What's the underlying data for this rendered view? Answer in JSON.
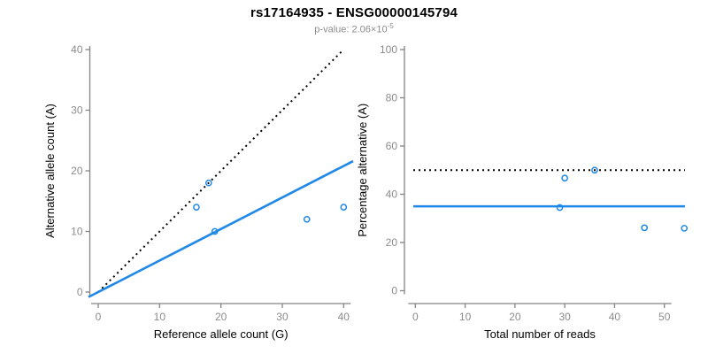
{
  "header": {
    "title": "rs17164935 - ENSG00000145794",
    "subtitle_prefix": "p-value: 2.06×10",
    "subtitle_exponent": "-5"
  },
  "colors": {
    "accent_blue": "#1f88e8",
    "line_black": "#000000",
    "axis_gray": "#848484",
    "tick_label_gray": "#8c8c8c",
    "axis_title_black": "#000000"
  },
  "chart_data": [
    {
      "type": "scatter",
      "name": "allele-count-scatter",
      "xlabel": "Reference allele count (G)",
      "ylabel": "Alternative allele count (A)",
      "xlim": [
        0,
        40
      ],
      "ylim": [
        0,
        40
      ],
      "xticks": [
        0,
        10,
        20,
        30,
        40
      ],
      "yticks": [
        0,
        10,
        20,
        30,
        40
      ],
      "grid": false,
      "legend": null,
      "points": [
        [
          16,
          14
        ],
        [
          18,
          18
        ],
        [
          19,
          10
        ],
        [
          34,
          12
        ],
        [
          40,
          14
        ]
      ],
      "lines": [
        {
          "name": "identity-line",
          "kind": "segment",
          "style": "dotted",
          "color": "#000000",
          "x1": 0,
          "y1": 0,
          "x2": 40,
          "y2": 40
        },
        {
          "name": "fit-line",
          "kind": "abline",
          "style": "solid",
          "color": "#1f88e8",
          "slope": 0.52,
          "intercept": 0
        }
      ]
    },
    {
      "type": "scatter",
      "name": "percentage-alternative-scatter",
      "xlabel": "Total number of reads",
      "ylabel": "Percentage alternative (A)",
      "xlim": [
        0,
        54
      ],
      "ylim": [
        0,
        100
      ],
      "xticks": [
        0,
        10,
        20,
        30,
        40,
        50
      ],
      "yticks": [
        0,
        20,
        40,
        60,
        80,
        100
      ],
      "grid": false,
      "legend": null,
      "points": [
        [
          29,
          34.5
        ],
        [
          30,
          46.7
        ],
        [
          36,
          50
        ],
        [
          46,
          26.1
        ],
        [
          54,
          25.9
        ]
      ],
      "lines": [
        {
          "name": "fifty-percent-line",
          "kind": "hline",
          "style": "dotted",
          "color": "#000000",
          "y": 50
        },
        {
          "name": "mean-percentage-line",
          "kind": "hline",
          "style": "solid",
          "color": "#1f88e8",
          "y": 35
        }
      ]
    }
  ]
}
